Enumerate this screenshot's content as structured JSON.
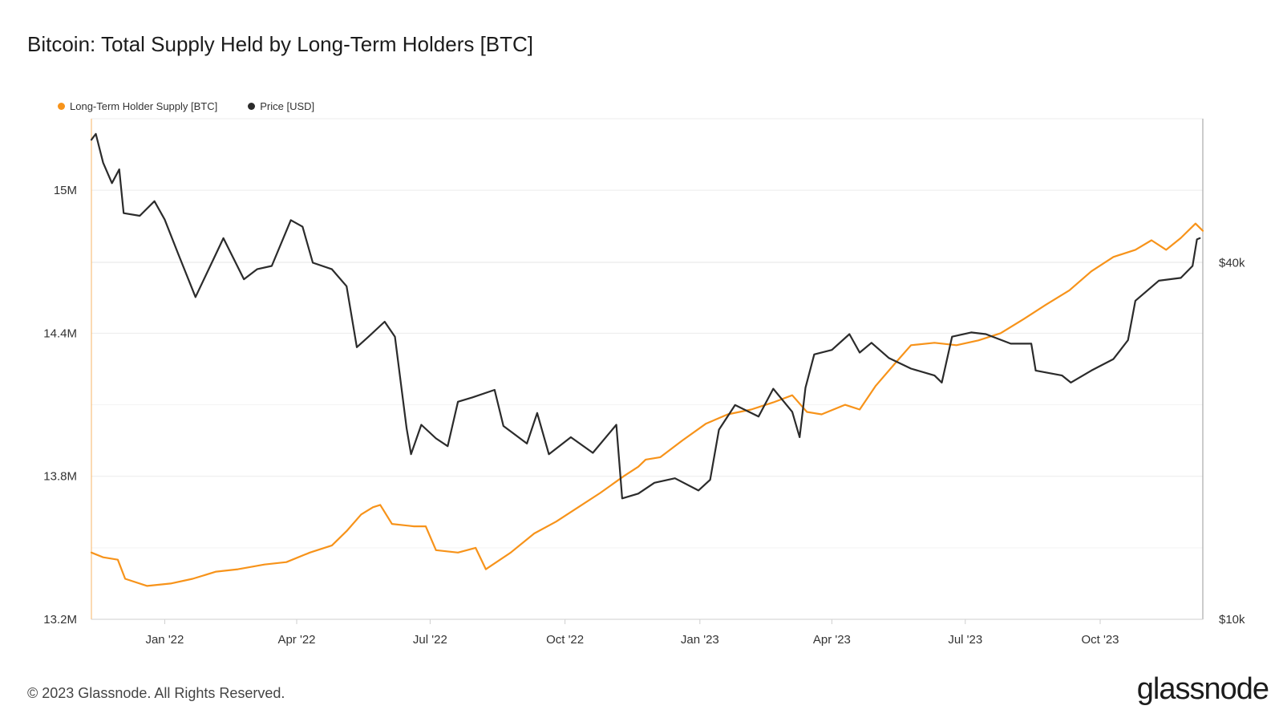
{
  "header": {
    "title": "Bitcoin: Total Supply Held by Long-Term Holders [BTC]"
  },
  "footer": {
    "copyright": "© 2023 Glassnode. All Rights Reserved.",
    "logo": "glassnode"
  },
  "colors": {
    "lth_supply": "#f7931a",
    "price": "#2b2b2b",
    "grid": "#ececec",
    "axis": "#cfcfcf"
  },
  "chart_data": {
    "type": "line",
    "legend_position": "top-left",
    "grid": true,
    "x_ticks": [
      "Jan '22",
      "Apr '22",
      "Jul '22",
      "Oct '22",
      "Jan '23",
      "Apr '23",
      "Jul '23",
      "Oct '23"
    ],
    "x_tick_dates": [
      "2022-01-01",
      "2022-04-01",
      "2022-07-01",
      "2022-10-01",
      "2023-01-01",
      "2023-04-01",
      "2023-07-01",
      "2023-10-01"
    ],
    "x_range": [
      "2021-11-12",
      "2023-12-10"
    ],
    "y_left": {
      "ticks": [
        "13.2M",
        "13.8M",
        "14.4M",
        "15M"
      ],
      "tick_values": [
        13200000,
        13800000,
        14400000,
        15000000
      ],
      "range": [
        13200000,
        15300000
      ],
      "scale": "linear"
    },
    "y_right": {
      "ticks": [
        "$10k",
        "$40k"
      ],
      "tick_values": [
        10000,
        40000
      ],
      "range": [
        10000,
        70000
      ],
      "scale": "log"
    },
    "series": [
      {
        "name": "Long-Term Holder Supply [BTC]",
        "axis": "left",
        "color": "#f7931a",
        "points": [
          [
            "2021-11-12",
            13480000
          ],
          [
            "2021-11-20",
            13460000
          ],
          [
            "2021-11-30",
            13450000
          ],
          [
            "2021-12-05",
            13370000
          ],
          [
            "2021-12-20",
            13340000
          ],
          [
            "2022-01-05",
            13350000
          ],
          [
            "2022-01-20",
            13370000
          ],
          [
            "2022-02-05",
            13400000
          ],
          [
            "2022-02-20",
            13410000
          ],
          [
            "2022-03-10",
            13430000
          ],
          [
            "2022-03-25",
            13440000
          ],
          [
            "2022-04-10",
            13480000
          ],
          [
            "2022-04-25",
            13510000
          ],
          [
            "2022-05-05",
            13570000
          ],
          [
            "2022-05-15",
            13640000
          ],
          [
            "2022-05-23",
            13670000
          ],
          [
            "2022-05-28",
            13680000
          ],
          [
            "2022-06-05",
            13600000
          ],
          [
            "2022-06-20",
            13590000
          ],
          [
            "2022-06-28",
            13590000
          ],
          [
            "2022-07-05",
            13490000
          ],
          [
            "2022-07-20",
            13480000
          ],
          [
            "2022-08-01",
            13500000
          ],
          [
            "2022-08-08",
            13410000
          ],
          [
            "2022-08-25",
            13480000
          ],
          [
            "2022-09-10",
            13560000
          ],
          [
            "2022-09-25",
            13610000
          ],
          [
            "2022-10-10",
            13670000
          ],
          [
            "2022-10-25",
            13730000
          ],
          [
            "2022-11-10",
            13800000
          ],
          [
            "2022-11-20",
            13840000
          ],
          [
            "2022-11-25",
            13870000
          ],
          [
            "2022-12-05",
            13880000
          ],
          [
            "2022-12-20",
            13950000
          ],
          [
            "2023-01-05",
            14020000
          ],
          [
            "2023-01-20",
            14060000
          ],
          [
            "2023-02-05",
            14080000
          ],
          [
            "2023-02-20",
            14110000
          ],
          [
            "2023-03-05",
            14140000
          ],
          [
            "2023-03-15",
            14070000
          ],
          [
            "2023-03-25",
            14060000
          ],
          [
            "2023-04-10",
            14100000
          ],
          [
            "2023-04-20",
            14080000
          ],
          [
            "2023-05-01",
            14180000
          ],
          [
            "2023-05-15",
            14280000
          ],
          [
            "2023-05-25",
            14350000
          ],
          [
            "2023-06-10",
            14360000
          ],
          [
            "2023-06-25",
            14350000
          ],
          [
            "2023-07-10",
            14370000
          ],
          [
            "2023-07-25",
            14400000
          ],
          [
            "2023-08-10",
            14460000
          ],
          [
            "2023-08-25",
            14520000
          ],
          [
            "2023-09-10",
            14580000
          ],
          [
            "2023-09-25",
            14660000
          ],
          [
            "2023-10-10",
            14720000
          ],
          [
            "2023-10-25",
            14750000
          ],
          [
            "2023-11-05",
            14790000
          ],
          [
            "2023-11-15",
            14750000
          ],
          [
            "2023-11-25",
            14800000
          ],
          [
            "2023-12-05",
            14860000
          ],
          [
            "2023-12-10",
            14830000
          ]
        ]
      },
      {
        "name": "Price [USD]",
        "axis": "right",
        "color": "#2b2b2b",
        "points": [
          [
            "2021-11-12",
            64500
          ],
          [
            "2021-11-15",
            66000
          ],
          [
            "2021-11-20",
            59000
          ],
          [
            "2021-11-26",
            54500
          ],
          [
            "2021-12-01",
            57500
          ],
          [
            "2021-12-04",
            48500
          ],
          [
            "2021-12-15",
            48000
          ],
          [
            "2021-12-25",
            50800
          ],
          [
            "2022-01-01",
            47300
          ],
          [
            "2022-01-10",
            41500
          ],
          [
            "2022-01-22",
            35000
          ],
          [
            "2022-02-05",
            41400
          ],
          [
            "2022-02-10",
            44000
          ],
          [
            "2022-02-24",
            37500
          ],
          [
            "2022-03-05",
            39000
          ],
          [
            "2022-03-15",
            39500
          ],
          [
            "2022-03-28",
            47200
          ],
          [
            "2022-04-05",
            46000
          ],
          [
            "2022-04-12",
            40000
          ],
          [
            "2022-04-25",
            39000
          ],
          [
            "2022-05-05",
            36500
          ],
          [
            "2022-05-12",
            28800
          ],
          [
            "2022-05-20",
            30000
          ],
          [
            "2022-05-31",
            31800
          ],
          [
            "2022-06-07",
            30000
          ],
          [
            "2022-06-15",
            21000
          ],
          [
            "2022-06-18",
            19000
          ],
          [
            "2022-06-25",
            21300
          ],
          [
            "2022-07-05",
            20200
          ],
          [
            "2022-07-13",
            19600
          ],
          [
            "2022-07-20",
            23300
          ],
          [
            "2022-07-30",
            23700
          ],
          [
            "2022-08-14",
            24400
          ],
          [
            "2022-08-20",
            21200
          ],
          [
            "2022-09-05",
            19800
          ],
          [
            "2022-09-12",
            22300
          ],
          [
            "2022-09-20",
            19000
          ],
          [
            "2022-10-05",
            20300
          ],
          [
            "2022-10-20",
            19100
          ],
          [
            "2022-11-05",
            21300
          ],
          [
            "2022-11-09",
            16000
          ],
          [
            "2022-11-20",
            16300
          ],
          [
            "2022-12-01",
            17000
          ],
          [
            "2022-12-15",
            17300
          ],
          [
            "2022-12-31",
            16500
          ],
          [
            "2023-01-08",
            17200
          ],
          [
            "2023-01-14",
            20900
          ],
          [
            "2023-01-25",
            23000
          ],
          [
            "2023-02-10",
            22000
          ],
          [
            "2023-02-20",
            24500
          ],
          [
            "2023-03-05",
            22400
          ],
          [
            "2023-03-10",
            20300
          ],
          [
            "2023-03-14",
            24600
          ],
          [
            "2023-03-20",
            28000
          ],
          [
            "2023-04-01",
            28500
          ],
          [
            "2023-04-13",
            30300
          ],
          [
            "2023-04-20",
            28200
          ],
          [
            "2023-04-28",
            29300
          ],
          [
            "2023-05-10",
            27600
          ],
          [
            "2023-05-25",
            26500
          ],
          [
            "2023-06-10",
            25800
          ],
          [
            "2023-06-15",
            25100
          ],
          [
            "2023-06-22",
            30000
          ],
          [
            "2023-07-05",
            30500
          ],
          [
            "2023-07-15",
            30300
          ],
          [
            "2023-08-01",
            29200
          ],
          [
            "2023-08-15",
            29200
          ],
          [
            "2023-08-18",
            26300
          ],
          [
            "2023-09-05",
            25800
          ],
          [
            "2023-09-11",
            25100
          ],
          [
            "2023-09-25",
            26300
          ],
          [
            "2023-10-10",
            27500
          ],
          [
            "2023-10-20",
            29600
          ],
          [
            "2023-10-25",
            34500
          ],
          [
            "2023-11-10",
            37300
          ],
          [
            "2023-11-25",
            37700
          ],
          [
            "2023-12-03",
            39500
          ],
          [
            "2023-12-06",
            43800
          ],
          [
            "2023-12-08",
            44000
          ]
        ]
      }
    ]
  }
}
